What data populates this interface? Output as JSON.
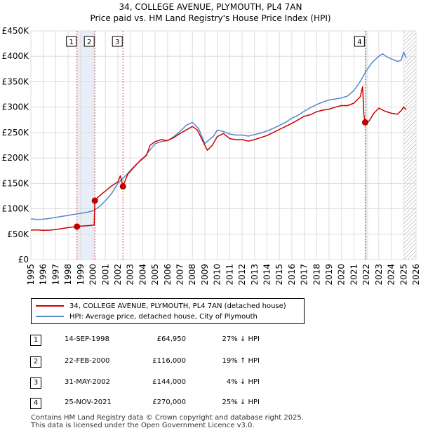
{
  "title": {
    "line1": "34, COLLEGE AVENUE, PLYMOUTH, PL4 7AN",
    "line2": "Price paid vs. HM Land Registry's House Price Index (HPI)"
  },
  "colors": {
    "price_paid": "#cc0000",
    "hpi": "#5588cc",
    "shaded": "#e8eef8",
    "grid": "#dddddd",
    "vline": "#dd4444"
  },
  "chart_data": {
    "type": "line",
    "xlim": [
      1995,
      2026
    ],
    "ylim": [
      0,
      450000
    ],
    "x_ticks": [
      "1995",
      "1996",
      "1997",
      "1998",
      "1999",
      "2000",
      "2001",
      "2002",
      "2003",
      "2004",
      "2005",
      "2006",
      "2007",
      "2008",
      "2009",
      "2010",
      "2011",
      "2012",
      "2013",
      "2014",
      "2015",
      "2016",
      "2017",
      "2018",
      "2019",
      "2020",
      "2021",
      "2022",
      "2023",
      "2024",
      "2025",
      "2026"
    ],
    "y_ticks": [
      {
        "value": 0,
        "label": "£0"
      },
      {
        "value": 50000,
        "label": "£50K"
      },
      {
        "value": 100000,
        "label": "£100K"
      },
      {
        "value": 150000,
        "label": "£150K"
      },
      {
        "value": 200000,
        "label": "£200K"
      },
      {
        "value": 250000,
        "label": "£250K"
      },
      {
        "value": 300000,
        "label": "£300K"
      },
      {
        "value": 350000,
        "label": "£350K"
      },
      {
        "value": 400000,
        "label": "£400K"
      },
      {
        "value": 450000,
        "label": "£450K"
      }
    ],
    "shaded_ranges": [
      [
        1998.71,
        2000.15
      ],
      [
        2021.9,
        2022.15
      ]
    ],
    "hatched_range": [
      2025.0,
      2026
    ],
    "series": [
      {
        "name": "34, COLLEGE AVENUE, PLYMOUTH, PL4 7AN (detached house)",
        "x": [
          1995.0,
          1995.5,
          1996.0,
          1996.5,
          1997.0,
          1997.5,
          1998.0,
          1998.71,
          1999.0,
          1999.5,
          2000.1,
          2000.15,
          2000.5,
          2001.0,
          2001.5,
          2002.0,
          2002.2,
          2002.41,
          2002.8,
          2003.3,
          2003.8,
          2004.3,
          2004.6,
          2005.0,
          2005.5,
          2006.0,
          2006.5,
          2007.0,
          2007.5,
          2008.0,
          2008.4,
          2008.8,
          2009.2,
          2009.6,
          2010.0,
          2010.5,
          2011.0,
          2011.5,
          2012.0,
          2012.5,
          2013.0,
          2013.5,
          2014.0,
          2014.5,
          2015.0,
          2015.5,
          2016.0,
          2016.5,
          2017.0,
          2017.5,
          2018.0,
          2018.5,
          2019.0,
          2019.5,
          2020.0,
          2020.5,
          2021.0,
          2021.5,
          2021.7,
          2021.8,
          2021.9,
          2022.2,
          2022.6,
          2023.0,
          2023.5,
          2024.0,
          2024.5,
          2024.8,
          2025.0,
          2025.2
        ],
        "values": [
          58000,
          58500,
          57500,
          58000,
          59000,
          61000,
          63000,
          64950,
          66000,
          66500,
          68000,
          116000,
          125000,
          135000,
          145000,
          153000,
          165000,
          144000,
          168000,
          182000,
          195000,
          205000,
          225000,
          232000,
          236000,
          234000,
          240000,
          248000,
          255000,
          262000,
          255000,
          235000,
          215000,
          225000,
          242000,
          248000,
          238000,
          236000,
          236000,
          233000,
          236000,
          240000,
          244000,
          250000,
          256000,
          262000,
          268000,
          275000,
          282000,
          285000,
          291000,
          294000,
          296000,
          300000,
          303000,
          303000,
          308000,
          320000,
          340000,
          285000,
          270000,
          272000,
          288000,
          298000,
          292000,
          288000,
          286000,
          293000,
          300000,
          295000
        ]
      },
      {
        "name": "HPI: Average price, detached house, City of Plymouth",
        "x": [
          1995.0,
          1995.5,
          1996.0,
          1996.5,
          1997.0,
          1997.5,
          1998.0,
          1998.5,
          1999.0,
          1999.5,
          2000.0,
          2000.5,
          2001.0,
          2001.5,
          2002.0,
          2002.5,
          2003.0,
          2003.5,
          2004.0,
          2004.5,
          2005.0,
          2005.5,
          2006.0,
          2006.5,
          2007.0,
          2007.5,
          2008.0,
          2008.5,
          2009.0,
          2009.3,
          2009.7,
          2010.0,
          2010.5,
          2011.0,
          2011.5,
          2012.0,
          2012.5,
          2013.0,
          2013.5,
          2014.0,
          2014.5,
          2015.0,
          2015.5,
          2016.0,
          2016.5,
          2017.0,
          2017.5,
          2018.0,
          2018.5,
          2019.0,
          2019.5,
          2020.0,
          2020.5,
          2021.0,
          2021.5,
          2022.0,
          2022.5,
          2023.0,
          2023.3,
          2023.7,
          2024.0,
          2024.5,
          2024.8,
          2025.0,
          2025.2
        ],
        "values": [
          80000,
          79000,
          79500,
          81000,
          83000,
          85000,
          87000,
          89000,
          91000,
          93000,
          96000,
          104000,
          116000,
          130000,
          150000,
          162000,
          175000,
          188000,
          198000,
          213000,
          228000,
          232000,
          234000,
          242000,
          252000,
          264000,
          270000,
          258000,
          228000,
          235000,
          243000,
          255000,
          252000,
          247000,
          245000,
          245000,
          243000,
          246000,
          249000,
          253000,
          258000,
          264000,
          270000,
          278000,
          284000,
          292000,
          299000,
          305000,
          310000,
          314000,
          316000,
          318000,
          322000,
          333000,
          350000,
          372000,
          389000,
          400000,
          405000,
          398000,
          395000,
          390000,
          392000,
          408000,
          397000
        ]
      }
    ],
    "transactions": [
      {
        "id": "1",
        "date": "14-SEP-1998",
        "x": 1998.71,
        "price_value": 64950,
        "price": "£64,950",
        "hpi": "27% ↓ HPI"
      },
      {
        "id": "2",
        "date": "22-FEB-2000",
        "x": 2000.15,
        "price_value": 116000,
        "price": "£116,000",
        "hpi": "19% ↑ HPI"
      },
      {
        "id": "3",
        "date": "31-MAY-2002",
        "x": 2002.41,
        "price_value": 144000,
        "price": "£144,000",
        "hpi": "4% ↓ HPI"
      },
      {
        "id": "4",
        "date": "25-NOV-2021",
        "x": 2021.9,
        "price_value": 270000,
        "price": "£270,000",
        "hpi": "25% ↓ HPI"
      }
    ]
  },
  "legend": {
    "price_paid": "34, COLLEGE AVENUE, PLYMOUTH, PL4 7AN (detached house)",
    "hpi": "HPI: Average price, detached house, City of Plymouth"
  },
  "footer": {
    "line1": "Contains HM Land Registry data © Crown copyright and database right 2025.",
    "line2": "This data is licensed under the Open Government Licence v3.0."
  }
}
